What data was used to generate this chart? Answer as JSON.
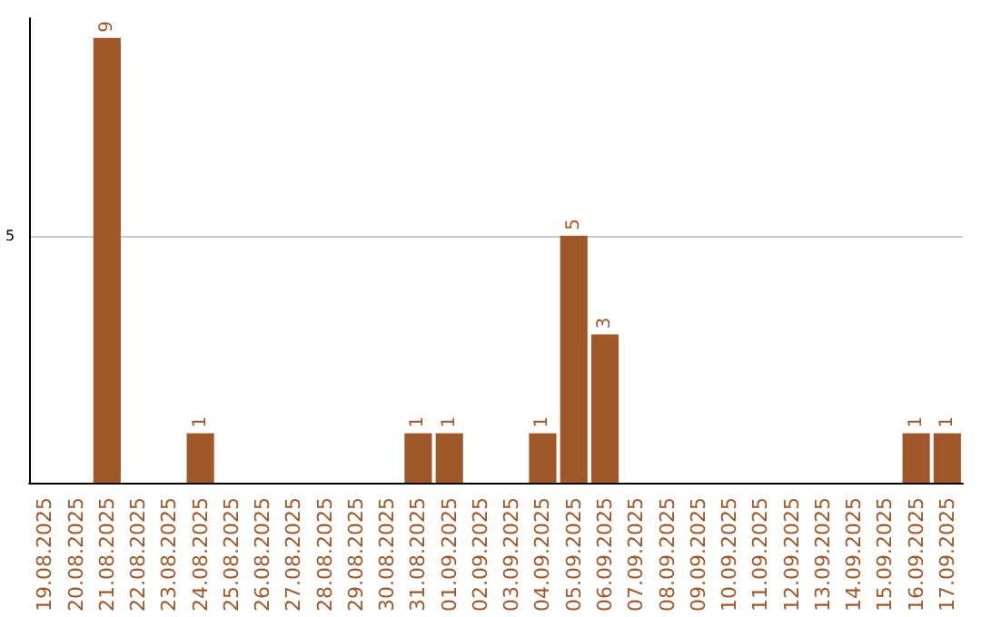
{
  "chart_data": {
    "type": "bar",
    "categories": [
      "19.08.2025",
      "20.08.2025",
      "21.08.2025",
      "22.08.2025",
      "23.08.2025",
      "24.08.2025",
      "25.08.2025",
      "26.08.2025",
      "27.08.2025",
      "28.08.2025",
      "29.08.2025",
      "30.08.2025",
      "31.08.2025",
      "01.09.2025",
      "02.09.2025",
      "03.09.2025",
      "04.09.2025",
      "05.09.2025",
      "06.09.2025",
      "07.09.2025",
      "08.09.2025",
      "09.09.2025",
      "10.09.2025",
      "11.09.2025",
      "12.09.2025",
      "13.09.2025",
      "14.09.2025",
      "15.09.2025",
      "16.09.2025",
      "17.09.2025"
    ],
    "values": [
      0,
      0,
      9,
      0,
      0,
      1,
      0,
      0,
      0,
      0,
      0,
      0,
      1,
      1,
      0,
      0,
      1,
      5,
      3,
      0,
      0,
      0,
      0,
      0,
      0,
      0,
      0,
      0,
      1,
      1
    ],
    "value_labels": [
      null,
      null,
      "9",
      null,
      null,
      "1",
      null,
      null,
      null,
      null,
      null,
      null,
      "1",
      "1",
      null,
      null,
      "1",
      "5",
      "3",
      null,
      null,
      null,
      null,
      null,
      null,
      null,
      null,
      null,
      "1",
      "1"
    ],
    "color": "#a0582a",
    "ylim": [
      0,
      9.4
    ],
    "yticks": [
      5
    ],
    "grid": "y"
  }
}
